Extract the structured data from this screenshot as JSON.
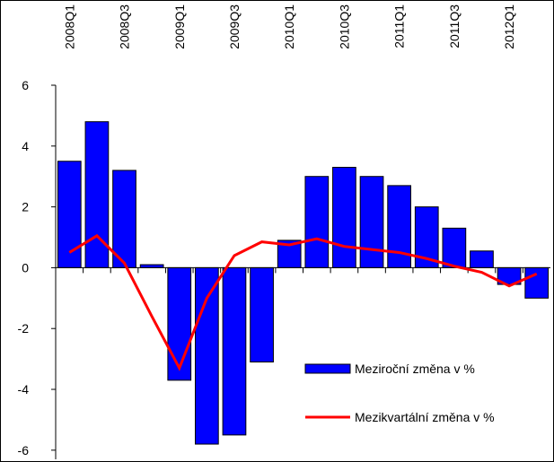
{
  "chart_data": {
    "type": "bar-line",
    "categories": [
      "2008Q1",
      null,
      "2008Q3",
      null,
      "2009Q1",
      null,
      "2009Q3",
      null,
      "2010Q1",
      null,
      "2010Q3",
      null,
      "2011Q1",
      null,
      "2011Q3",
      null,
      "2012Q1",
      null
    ],
    "series": [
      {
        "name": "Meziroční změna v %",
        "type": "bar",
        "color": "#0000ff",
        "values": [
          3.5,
          4.8,
          3.2,
          0.1,
          -3.7,
          -5.8,
          -5.5,
          -3.1,
          0.9,
          3.0,
          3.3,
          3.0,
          2.7,
          2.0,
          1.3,
          0.55,
          -0.55,
          -1.0
        ]
      },
      {
        "name": "Mezikvartální změna v %",
        "type": "line",
        "color": "#ff0000",
        "values": [
          0.5,
          1.05,
          0.15,
          -1.6,
          -3.3,
          -1.0,
          0.4,
          0.85,
          0.75,
          0.95,
          0.7,
          0.6,
          0.5,
          0.3,
          0.05,
          -0.15,
          -0.6,
          -0.2
        ]
      }
    ],
    "ylim": [
      -6.3,
      6
    ],
    "yticks": [
      -6,
      -4,
      -2,
      0,
      2,
      4,
      6
    ],
    "legend": "lower right"
  }
}
